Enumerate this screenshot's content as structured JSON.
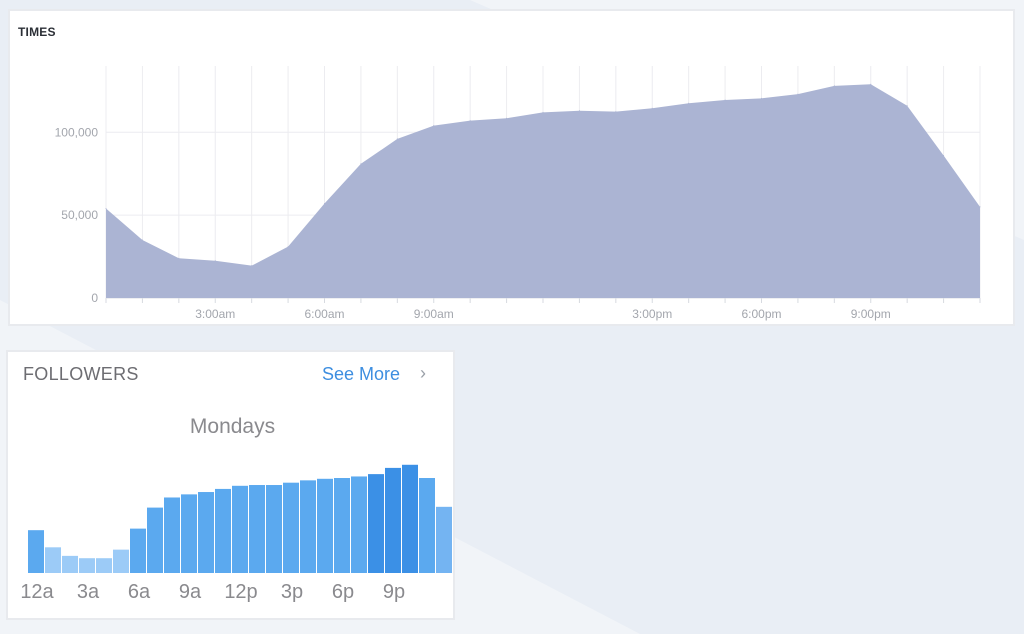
{
  "colors": {
    "area_fill": "#abb4d3",
    "bar_light": "#9ccbf7",
    "bar_mid": "#5ba9ef",
    "bar_dark": "#3b90e6",
    "link": "#3d8ee0"
  },
  "times": {
    "title": "TIMES"
  },
  "followers": {
    "title": "FOLLOWERS",
    "see_more": "See More",
    "chevron_icon": "chevron-right-icon",
    "subtitle": "Mondays"
  },
  "chart_data": [
    {
      "type": "area",
      "title": "TIMES",
      "ylim": [
        0,
        140000
      ],
      "y_ticks": [
        0,
        50000,
        100000
      ],
      "y_tick_labels": [
        "0",
        "50,000",
        "100,000"
      ],
      "x_tick_hours": [
        3,
        6,
        9,
        15,
        18,
        21
      ],
      "x_tick_labels": [
        "3:00am",
        "6:00am",
        "9:00am",
        "3:00pm",
        "6:00pm",
        "9:00pm"
      ],
      "grid": true,
      "x": [
        0,
        1,
        2,
        3,
        4,
        5,
        6,
        7,
        8,
        9,
        10,
        11,
        12,
        13,
        14,
        15,
        16,
        17,
        18,
        19,
        20,
        21,
        22,
        23,
        24
      ],
      "values": [
        54000,
        35000,
        24000,
        22500,
        19500,
        31000,
        57000,
        81000,
        96000,
        104000,
        107000,
        108500,
        112000,
        113000,
        112500,
        114500,
        117500,
        119500,
        120500,
        123000,
        128000,
        129000,
        116000,
        86000,
        55000
      ]
    },
    {
      "type": "bar",
      "title": "Mondays",
      "categories": [
        "12a",
        "1a",
        "2a",
        "3a",
        "4a",
        "5a",
        "6a",
        "7a",
        "8a",
        "9a",
        "10a",
        "11a",
        "12p",
        "1p",
        "2p",
        "3p",
        "4p",
        "5p",
        "6p",
        "7p",
        "8p",
        "9p",
        "10p",
        "11p",
        "12a"
      ],
      "x_tick_labels": [
        "12a",
        "3a",
        "6a",
        "9a",
        "12p",
        "3p",
        "6p",
        "9p"
      ],
      "ylim": [
        0,
        140000
      ],
      "grid": false,
      "values": [
        55000,
        33000,
        22000,
        19000,
        19000,
        30000,
        57000,
        84000,
        97000,
        101000,
        104000,
        108000,
        112000,
        113000,
        113000,
        116000,
        119000,
        121000,
        122000,
        124000,
        127000,
        135000,
        139000,
        122000,
        85000
      ]
    }
  ]
}
